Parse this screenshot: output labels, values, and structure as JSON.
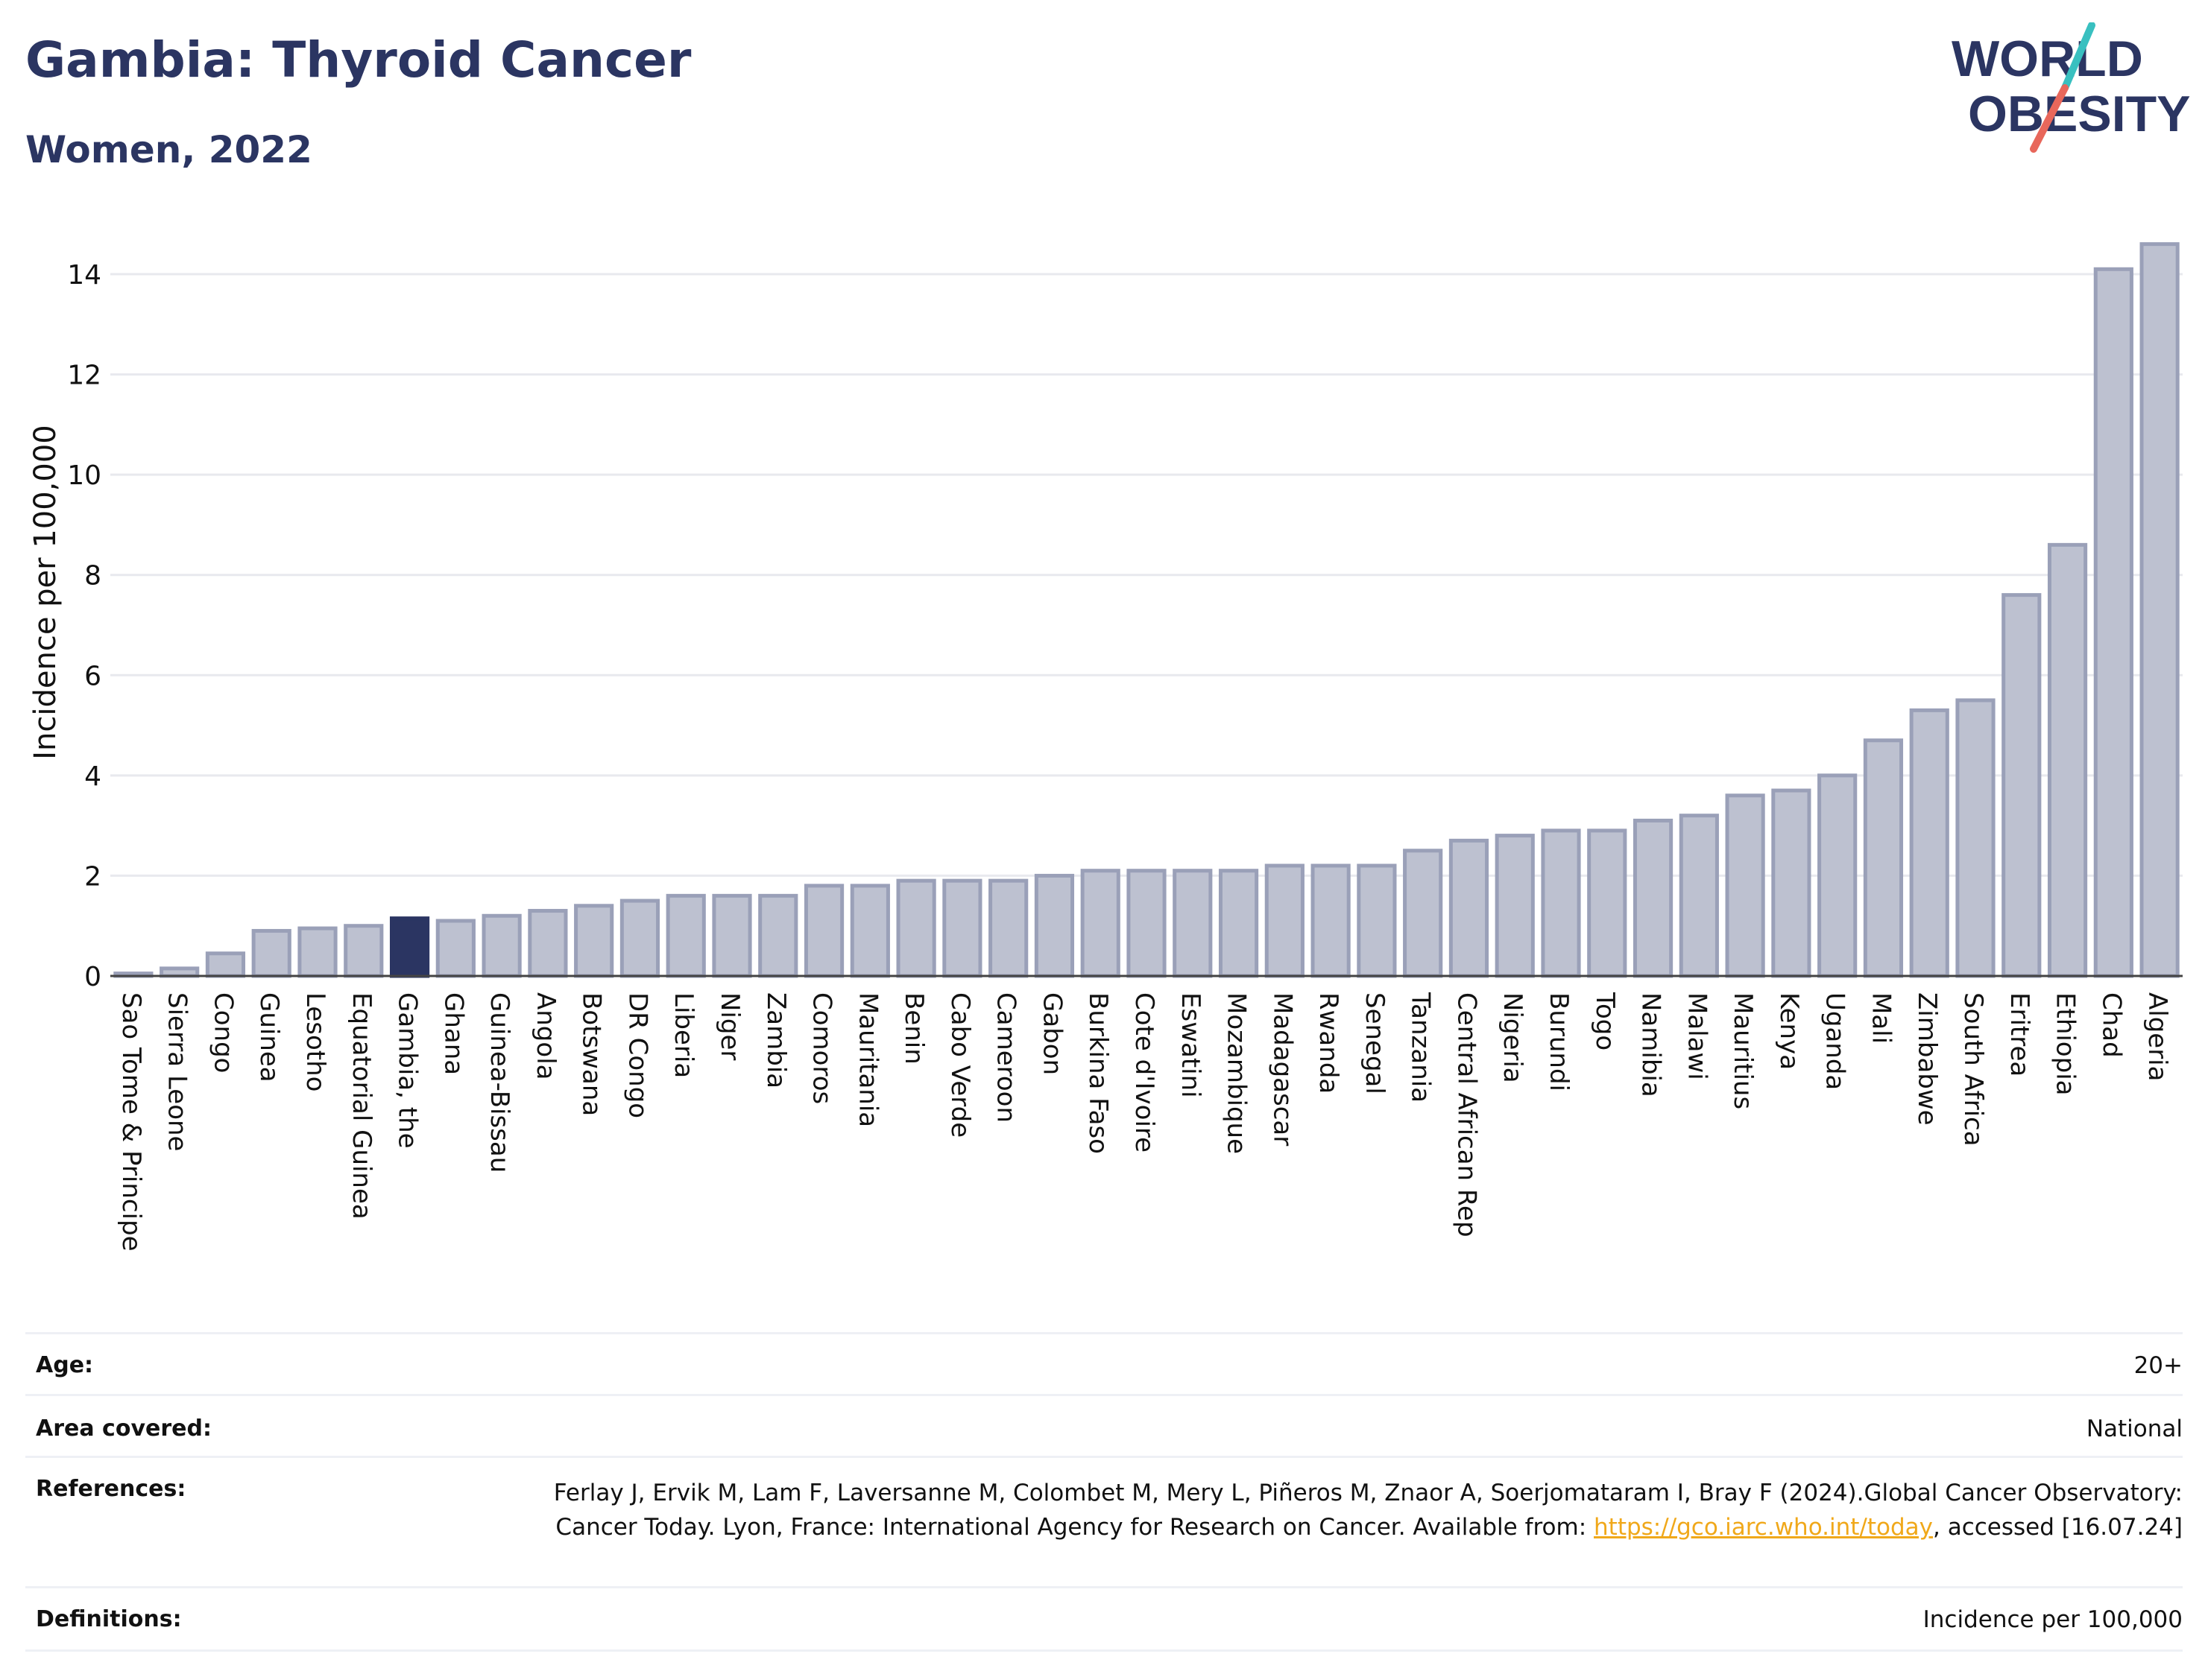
{
  "header": {
    "title": "Gambia: Thyroid Cancer",
    "subtitle": "Women, 2022"
  },
  "logo": {
    "line1": "WORLD",
    "line2": "OBESITY",
    "colors": {
      "text": "#2b3562",
      "slash_top": "#39c0c0",
      "slash_bottom": "#e8675b"
    }
  },
  "chart_data": {
    "type": "bar",
    "ylabel": "Incidence per 100,000",
    "xlabel": "",
    "ylim": [
      0,
      15
    ],
    "yticks": [
      0,
      2,
      4,
      6,
      8,
      10,
      12,
      14
    ],
    "grid": true,
    "highlight": "Gambia, the",
    "colors": {
      "bar": "#bdc1d0",
      "bar_edge": "#9aa0b8",
      "highlight": "#2b3562"
    },
    "categories": [
      "Sao Tome & Principe",
      "Sierra Leone",
      "Congo",
      "Guinea",
      "Lesotho",
      "Equatorial Guinea",
      "Gambia, the",
      "Ghana",
      "Guinea-Bissau",
      "Angola",
      "Botswana",
      "DR Congo",
      "Liberia",
      "Niger",
      "Zambia",
      "Comoros",
      "Mauritania",
      "Benin",
      "Cabo Verde",
      "Cameroon",
      "Gabon",
      "Burkina Faso",
      "Cote d'Ivoire",
      "Eswatini",
      "Mozambique",
      "Madagascar",
      "Rwanda",
      "Senegal",
      "Tanzania",
      "Central African Rep",
      "Nigeria",
      "Burundi",
      "Togo",
      "Namibia",
      "Malawi",
      "Mauritius",
      "Kenya",
      "Uganda",
      "Mali",
      "Zimbabwe",
      "South Africa",
      "Eritrea",
      "Ethiopia",
      "Chad",
      "Algeria"
    ],
    "values": [
      0.05,
      0.15,
      0.45,
      0.9,
      0.95,
      1.0,
      1.15,
      1.1,
      1.2,
      1.3,
      1.4,
      1.5,
      1.6,
      1.6,
      1.6,
      1.8,
      1.8,
      1.9,
      1.9,
      1.9,
      2.0,
      2.1,
      2.1,
      2.1,
      2.1,
      2.2,
      2.2,
      2.2,
      2.5,
      2.7,
      2.8,
      2.9,
      2.9,
      3.1,
      3.2,
      3.6,
      3.7,
      4.0,
      4.7,
      5.3,
      5.5,
      7.6,
      8.6,
      14.1,
      14.6
    ]
  },
  "meta": {
    "age_label": "Age:",
    "age_value": "20+",
    "area_label": "Area covered:",
    "area_value": "National",
    "ref_label": "References:",
    "ref_text_1": "Ferlay J, Ervik M, Lam F, Laversanne M, Colombet M, Mery L, Piñeros M, Znaor A, Soerjomataram I, Bray F (2024).Global Cancer Observatory: Cancer Today. Lyon, France: International Agency for Research on Cancer. Available from: ",
    "ref_link": "https://gco.iarc.who.int/today",
    "ref_text_2": ", accessed [16.07.24]",
    "def_label": "Definitions:",
    "def_value": "Incidence per 100,000"
  }
}
